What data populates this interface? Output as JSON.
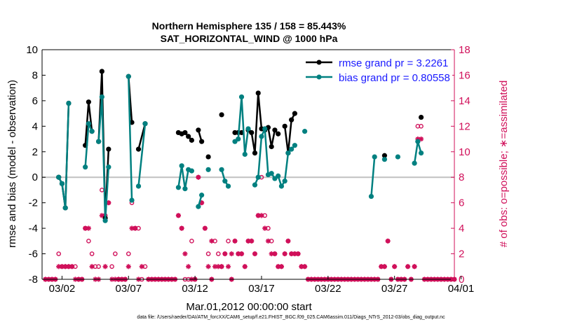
{
  "chart_data": {
    "type": "line",
    "title": "Northern Hemisphere 135 / 158 = 85.443%",
    "subtitle": "SAT_HORIZONTAL_WIND @ 1000 hPa",
    "xlabel": "Mar.01,2012 00:00:00 start",
    "ylabel_left": "rmse and bias (model - observation)",
    "ylabel_right": "# of obs: o=possible; ∗=assimilated",
    "ylim_left": [
      -8,
      10
    ],
    "ylim_right": [
      0,
      18
    ],
    "yticks_left": [
      "-8",
      "-6",
      "-4",
      "-2",
      "0",
      "2",
      "4",
      "6",
      "8",
      "10"
    ],
    "yticks_right": [
      "0",
      "2",
      "4",
      "6",
      "8",
      "10",
      "12",
      "14",
      "16",
      "18"
    ],
    "xlim_days": [
      0.5,
      31.5
    ],
    "xtick_labels": [
      {
        "label": "03/02",
        "day": 2
      },
      {
        "label": "03/07",
        "day": 7
      },
      {
        "label": "03/12",
        "day": 12
      },
      {
        "label": "03/17",
        "day": 17
      },
      {
        "label": "03/22",
        "day": 22
      },
      {
        "label": "03/27",
        "day": 27
      },
      {
        "label": "04/01",
        "day": 32
      }
    ],
    "grid": false,
    "zero_line": true,
    "legend_position": "top-right",
    "colors": {
      "rmse": "#000000",
      "bias": "#008080",
      "obs": "#d0105a",
      "axis_right": "#d0105a",
      "zero": "#c0c0c0",
      "legend_text": "#1a1aff"
    },
    "series": [
      {
        "name": "rmse grand pr = 3.2261",
        "color": "#000000",
        "points": [
          [
            1.75,
            0.0
          ],
          [
            2.0,
            -0.5
          ],
          [
            2.25,
            -2.4
          ],
          [
            2.5,
            5.8
          ],
          [
            null,
            null
          ],
          [
            3.75,
            2.5
          ],
          [
            4.0,
            5.9
          ],
          [
            4.25,
            3.6
          ],
          [
            null,
            null
          ],
          [
            4.75,
            2.8
          ],
          [
            5.0,
            8.3
          ],
          [
            5.25,
            -3.2
          ],
          [
            5.5,
            2.2
          ],
          [
            null,
            null
          ],
          [
            7.0,
            7.9
          ],
          [
            7.25,
            4.3
          ],
          [
            null,
            null
          ],
          [
            7.75,
            2.2
          ],
          [
            8.25,
            4.2
          ],
          [
            null,
            null
          ],
          [
            10.75,
            3.5
          ],
          [
            11.0,
            3.4
          ],
          [
            11.25,
            3.5
          ],
          [
            11.5,
            3.2
          ],
          [
            11.75,
            2.9
          ],
          [
            null,
            null
          ],
          [
            12.25,
            3.7
          ],
          [
            12.5,
            2.8
          ],
          [
            null,
            null
          ],
          [
            13.0,
            1.6
          ],
          [
            null,
            null
          ],
          [
            14.0,
            4.9
          ],
          [
            null,
            null
          ],
          [
            15.0,
            3.5
          ],
          [
            15.25,
            3.5
          ],
          [
            15.5,
            3.5
          ],
          [
            null,
            null
          ],
          [
            16.0,
            3.7
          ],
          [
            16.25,
            3.5
          ],
          [
            16.5,
            1.9
          ],
          [
            16.75,
            6.6
          ],
          [
            17.0,
            3.8
          ],
          [
            17.25,
            3.7
          ],
          [
            17.5,
            3.9
          ],
          [
            17.75,
            2.4
          ],
          [
            18.0,
            3.7
          ],
          [
            18.25,
            3.4
          ],
          [
            null,
            null
          ],
          [
            18.75,
            4.0
          ],
          [
            19.0,
            1.9
          ],
          [
            19.25,
            4.5
          ],
          [
            19.5,
            5.0
          ],
          [
            null,
            null
          ],
          [
            26.25,
            1.7
          ],
          [
            null,
            null
          ],
          [
            29.0,
            4.7
          ]
        ]
      },
      {
        "name": "bias grand pr = 0.80558",
        "color": "#008080",
        "points": [
          [
            1.75,
            0.0
          ],
          [
            2.0,
            -0.5
          ],
          [
            2.25,
            -2.4
          ],
          [
            2.5,
            5.8
          ],
          [
            null,
            null
          ],
          [
            3.75,
            0.8
          ],
          [
            4.0,
            4.2
          ],
          [
            4.25,
            3.6
          ],
          [
            null,
            null
          ],
          [
            4.75,
            2.8
          ],
          [
            5.0,
            6.3
          ],
          [
            5.25,
            -3.4
          ],
          [
            5.5,
            0.8
          ],
          [
            null,
            null
          ],
          [
            7.0,
            7.9
          ],
          [
            7.25,
            -1.8
          ],
          [
            null,
            null
          ],
          [
            7.75,
            -0.7
          ],
          [
            8.25,
            4.2
          ],
          [
            null,
            null
          ],
          [
            10.75,
            -0.8
          ],
          [
            11.0,
            0.9
          ],
          [
            11.25,
            -0.9
          ],
          [
            11.5,
            0.6
          ],
          [
            11.75,
            0.5
          ],
          [
            null,
            null
          ],
          [
            12.25,
            -2.3
          ],
          [
            12.5,
            -1.4
          ],
          [
            null,
            null
          ],
          [
            13.0,
            0.6
          ],
          [
            null,
            null
          ],
          [
            14.0,
            0.6
          ],
          [
            14.25,
            -0.3
          ],
          [
            14.5,
            -0.7
          ],
          [
            null,
            null
          ],
          [
            15.0,
            2.8
          ],
          [
            15.25,
            3.0
          ],
          [
            15.5,
            6.3
          ],
          [
            15.75,
            1.8
          ],
          [
            16.0,
            3.8
          ],
          [
            null,
            null
          ],
          [
            16.5,
            -0.6
          ],
          [
            16.75,
            0.0
          ],
          [
            17.0,
            3.2
          ],
          [
            17.25,
            3.8
          ],
          [
            17.5,
            0.2
          ],
          [
            17.75,
            0.3
          ],
          [
            18.0,
            -0.1
          ],
          [
            18.25,
            0.1
          ],
          [
            18.5,
            -0.7
          ],
          [
            18.75,
            -0.3
          ],
          [
            19.0,
            1.9
          ],
          [
            19.25,
            2.2
          ],
          [
            19.5,
            2.5
          ],
          [
            null,
            null
          ],
          [
            20.25,
            3.6
          ],
          [
            null,
            null
          ],
          [
            25.25,
            -1.5
          ],
          [
            25.5,
            1.6
          ],
          [
            null,
            null
          ],
          [
            26.25,
            1.4
          ],
          [
            null,
            null
          ],
          [
            27.25,
            1.6
          ],
          [
            null,
            null
          ],
          [
            28.5,
            1.1
          ],
          [
            28.75,
            2.8
          ],
          [
            29.0,
            1.9
          ]
        ]
      }
    ],
    "obs_possible": [
      [
        1.75,
        2
      ],
      [
        2.0,
        1
      ],
      [
        2.25,
        1
      ],
      [
        2.5,
        1
      ],
      [
        2.75,
        1
      ],
      [
        3.0,
        1
      ],
      [
        3.25,
        0
      ],
      [
        3.75,
        4
      ],
      [
        4.0,
        3
      ],
      [
        4.25,
        2
      ],
      [
        4.5,
        1
      ],
      [
        4.75,
        1
      ],
      [
        5.0,
        7
      ],
      [
        5.25,
        5
      ],
      [
        5.5,
        6
      ],
      [
        5.75,
        1
      ],
      [
        6.0,
        2
      ],
      [
        6.5,
        0
      ],
      [
        7.0,
        2
      ],
      [
        7.25,
        6
      ],
      [
        7.5,
        4
      ],
      [
        7.75,
        4
      ],
      [
        8.0,
        0
      ],
      [
        8.25,
        1
      ],
      [
        10.75,
        5
      ],
      [
        11.0,
        4
      ],
      [
        11.25,
        0
      ],
      [
        11.5,
        0
      ],
      [
        11.75,
        3
      ],
      [
        12.0,
        0
      ],
      [
        12.25,
        8
      ],
      [
        12.5,
        6
      ],
      [
        12.75,
        4
      ],
      [
        13.0,
        2
      ],
      [
        13.5,
        3
      ],
      [
        13.75,
        2
      ],
      [
        14.0,
        1
      ],
      [
        14.25,
        2
      ],
      [
        14.5,
        3
      ],
      [
        15.0,
        3
      ],
      [
        15.25,
        2
      ],
      [
        15.5,
        2
      ],
      [
        15.75,
        1
      ],
      [
        16.0,
        3
      ],
      [
        16.25,
        3
      ],
      [
        16.5,
        2
      ],
      [
        16.75,
        5
      ],
      [
        17.0,
        8
      ],
      [
        17.25,
        5
      ],
      [
        17.5,
        4
      ],
      [
        17.75,
        3
      ],
      [
        18.0,
        2
      ],
      [
        18.25,
        1
      ],
      [
        18.5,
        1
      ],
      [
        18.75,
        2
      ],
      [
        19.0,
        3
      ],
      [
        19.25,
        2
      ],
      [
        19.5,
        2
      ],
      [
        19.75,
        2
      ],
      [
        20.0,
        1
      ],
      [
        20.25,
        1
      ],
      [
        26.0,
        1
      ],
      [
        26.25,
        1
      ],
      [
        26.5,
        3
      ],
      [
        27.0,
        1
      ],
      [
        28.0,
        1
      ],
      [
        28.5,
        1
      ],
      [
        28.75,
        12
      ],
      [
        29.0,
        12
      ]
    ],
    "obs_assimilated": [
      [
        1.75,
        1
      ],
      [
        2.0,
        1
      ],
      [
        2.25,
        1
      ],
      [
        2.5,
        1
      ],
      [
        2.75,
        1
      ],
      [
        3.0,
        0
      ],
      [
        3.25,
        0
      ],
      [
        3.75,
        4
      ],
      [
        4.0,
        4
      ],
      [
        4.25,
        1
      ],
      [
        4.5,
        0
      ],
      [
        4.75,
        0
      ],
      [
        5.0,
        5
      ],
      [
        5.25,
        1
      ],
      [
        5.5,
        6
      ],
      [
        5.75,
        0
      ],
      [
        6.0,
        0
      ],
      [
        6.25,
        0
      ],
      [
        6.5,
        0
      ],
      [
        6.75,
        0
      ],
      [
        7.0,
        1
      ],
      [
        7.25,
        4
      ],
      [
        7.5,
        4
      ],
      [
        7.75,
        0
      ],
      [
        8.0,
        1
      ],
      [
        10.75,
        5
      ],
      [
        11.0,
        4
      ],
      [
        11.25,
        2
      ],
      [
        11.5,
        1
      ],
      [
        11.75,
        0
      ],
      [
        12.0,
        0
      ],
      [
        12.25,
        8
      ],
      [
        12.5,
        6
      ],
      [
        12.75,
        4
      ],
      [
        13.0,
        1
      ],
      [
        13.25,
        3
      ],
      [
        13.5,
        1
      ],
      [
        13.75,
        1
      ],
      [
        14.0,
        1
      ],
      [
        14.25,
        2
      ],
      [
        14.5,
        1
      ],
      [
        14.75,
        2
      ],
      [
        15.0,
        3
      ],
      [
        15.25,
        2
      ],
      [
        15.5,
        2
      ],
      [
        15.75,
        1
      ],
      [
        16.0,
        3
      ],
      [
        16.25,
        3
      ],
      [
        16.5,
        2
      ],
      [
        16.75,
        5
      ],
      [
        17.0,
        5
      ],
      [
        17.25,
        4
      ],
      [
        17.5,
        3
      ],
      [
        17.75,
        2
      ],
      [
        18.0,
        2
      ],
      [
        18.25,
        1
      ],
      [
        18.5,
        1
      ],
      [
        18.75,
        2
      ],
      [
        19.0,
        3
      ],
      [
        19.25,
        2
      ],
      [
        19.5,
        2
      ],
      [
        19.75,
        2
      ],
      [
        20.0,
        1
      ],
      [
        20.25,
        1
      ],
      [
        26.0,
        1
      ],
      [
        26.25,
        1
      ],
      [
        26.5,
        3
      ],
      [
        27.0,
        1
      ],
      [
        28.0,
        1
      ],
      [
        28.5,
        1
      ],
      [
        28.75,
        11
      ],
      [
        29.0,
        11
      ]
    ],
    "obs_zero_days_start": 0.75,
    "obs_zero_days_end": 31.5
  },
  "footer": "data file: /Users/raeder/DAI/ATM_forcXX/CAM6_setup/f.e21.FHIST_BGC.f09_025.CAM6assim.011/Diags_NTrS_2012-03/obs_diag_output.nc"
}
